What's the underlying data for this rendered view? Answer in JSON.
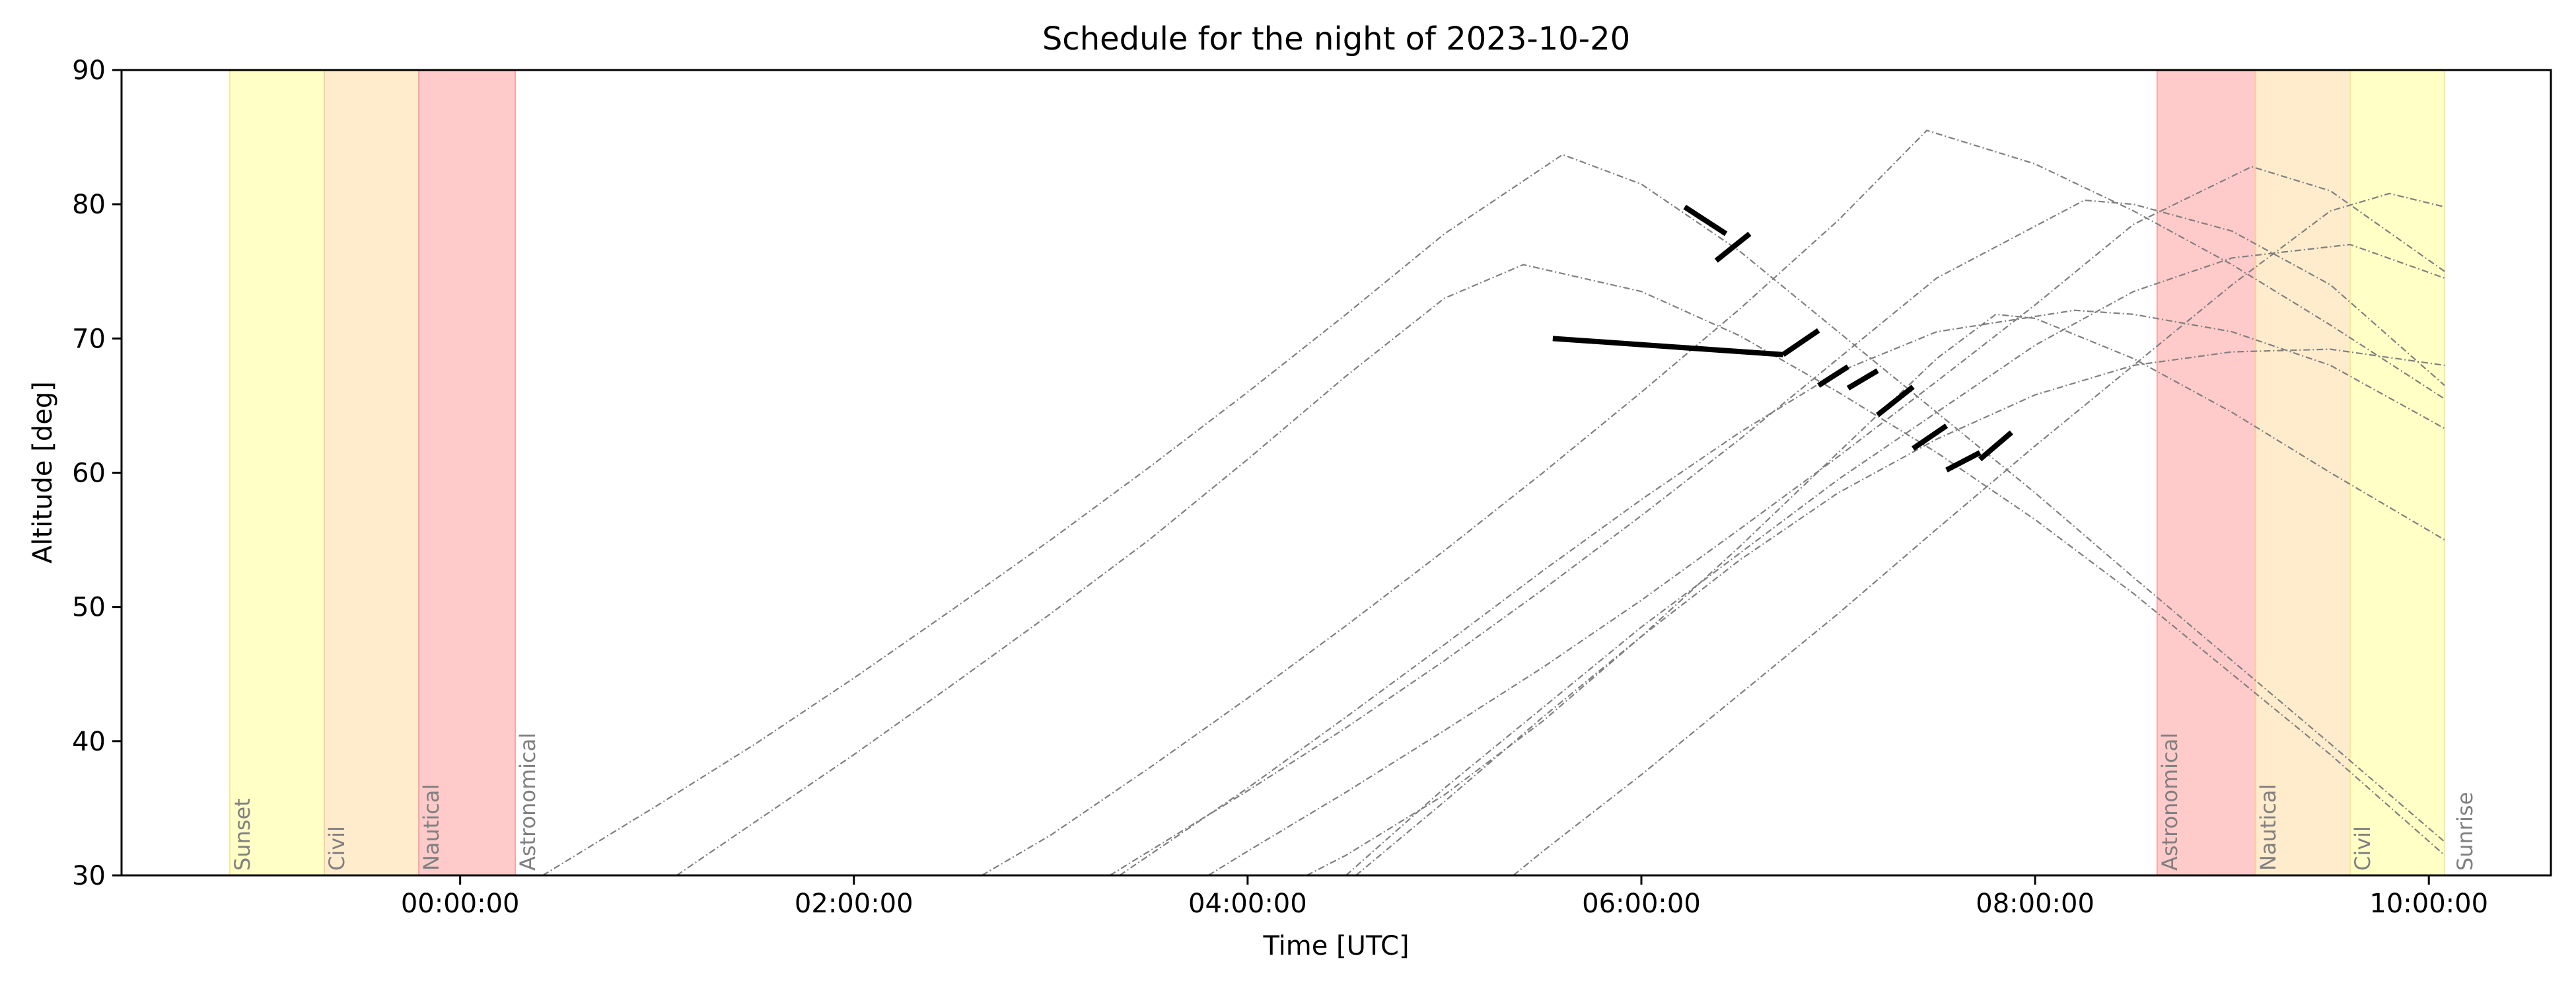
{
  "chart_data": {
    "type": "line",
    "title": "Schedule for the night of 2023-10-20",
    "xlabel": "Time [UTC]",
    "ylabel": "Altitude [deg]",
    "x_unit": "hours (UTC, relative to 2023-10-21 00:00:00)",
    "xlim": [
      -1.72,
      10.62
    ],
    "ylim": [
      30,
      90
    ],
    "grid": false,
    "x_ticks": [
      {
        "value": 0,
        "label": "00:00:00"
      },
      {
        "value": 2,
        "label": "02:00:00"
      },
      {
        "value": 4,
        "label": "04:00:00"
      },
      {
        "value": 6,
        "label": "06:00:00"
      },
      {
        "value": 8,
        "label": "08:00:00"
      },
      {
        "value": 10,
        "label": "10:00:00"
      }
    ],
    "y_ticks": [
      30,
      40,
      50,
      60,
      70,
      80,
      90
    ],
    "twilight_bands": [
      {
        "label": "Sunset",
        "start": -1.17,
        "end": -0.69,
        "color": "#ffffc6"
      },
      {
        "label": "Civil",
        "start": -0.69,
        "end": -0.21,
        "color": "#ffeccc"
      },
      {
        "label": "Nautical",
        "start": -0.21,
        "end": 0.28,
        "color": "#ffcaca"
      },
      {
        "label": "Astronomical",
        "start": 0.28,
        "end": 0.28,
        "color": "#ffcaca"
      },
      {
        "label": "Astronomical",
        "start": 8.62,
        "end": 9.12,
        "color": "#ffcaca"
      },
      {
        "label": "Nautical",
        "start": 9.12,
        "end": 9.6,
        "color": "#ffeccc"
      },
      {
        "label": "Civil",
        "start": 9.6,
        "end": 10.08,
        "color": "#ffffc6"
      },
      {
        "label": "Sunrise",
        "start": 10.08,
        "end": 10.08,
        "color": "#ffffc6"
      }
    ],
    "altitude_series": [
      {
        "transit_time": 5.6,
        "max_altitude": 83.7,
        "x": [
          0.42,
          1.0,
          1.5,
          2.0,
          2.5,
          3.0,
          3.5,
          4.0,
          4.5,
          5.0,
          5.6,
          6.0,
          6.5,
          7.0,
          7.5,
          8.0,
          8.5,
          9.0,
          9.5,
          10.08
        ],
        "y": [
          30.0,
          35.2,
          39.8,
          44.7,
          49.8,
          55.0,
          60.4,
          66.0,
          71.8,
          77.8,
          83.7,
          81.5,
          76.5,
          70.5,
          64.5,
          58.5,
          52.2,
          46.0,
          39.8,
          32.5
        ]
      },
      {
        "transit_time": 5.4,
        "max_altitude": 75.5,
        "x": [
          1.1,
          1.5,
          2.0,
          2.5,
          3.0,
          3.5,
          4.0,
          4.5,
          5.0,
          5.4,
          6.0,
          6.5,
          7.0,
          7.5,
          8.0,
          8.5,
          9.0,
          9.5,
          10.08
        ],
        "y": [
          30.0,
          34.0,
          39.0,
          44.2,
          49.5,
          55.0,
          61.0,
          67.2,
          73.0,
          75.5,
          73.5,
          70.2,
          66.0,
          61.5,
          56.5,
          51.0,
          45.0,
          39.0,
          31.5
        ]
      },
      {
        "transit_time": 7.45,
        "max_altitude": 85.5,
        "x": [
          2.65,
          3.0,
          3.5,
          4.0,
          4.5,
          5.0,
          5.5,
          6.0,
          6.5,
          7.0,
          7.45,
          8.0,
          8.5,
          9.0,
          9.5,
          10.08
        ],
        "y": [
          30.0,
          33.0,
          38.0,
          43.2,
          48.6,
          54.2,
          60.0,
          66.0,
          72.2,
          78.8,
          85.5,
          83.0,
          79.5,
          75.5,
          71.0,
          65.5
        ]
      },
      {
        "transit_time": 8.25,
        "max_altitude": 80.3,
        "x": [
          3.3,
          3.5,
          4.0,
          4.5,
          5.0,
          5.5,
          6.0,
          6.5,
          7.0,
          7.5,
          8.25,
          8.5,
          9.0,
          9.5,
          10.08
        ],
        "y": [
          30.0,
          31.8,
          36.3,
          41.0,
          46.0,
          51.3,
          56.8,
          62.5,
          68.5,
          74.5,
          80.3,
          80.0,
          78.0,
          74.0,
          66.5
        ]
      },
      {
        "transit_time": 9.1,
        "max_altitude": 82.8,
        "x": [
          3.8,
          4.0,
          4.5,
          5.0,
          5.5,
          6.0,
          6.5,
          7.0,
          7.5,
          8.0,
          8.5,
          9.1,
          9.5,
          10.08
        ],
        "y": [
          30.0,
          31.8,
          36.2,
          40.8,
          45.5,
          50.5,
          55.8,
          61.2,
          66.8,
          72.5,
          78.5,
          82.8,
          81.0,
          75.0
        ]
      },
      {
        "transit_time": 8.2,
        "max_altitude": 72.1,
        "x": [
          3.35,
          3.5,
          4.0,
          4.5,
          5.0,
          5.5,
          6.0,
          6.5,
          7.0,
          7.5,
          8.2,
          8.5,
          9.0,
          9.5,
          10.08
        ],
        "y": [
          30.0,
          31.5,
          36.5,
          41.8,
          47.2,
          52.7,
          58.0,
          63.0,
          67.5,
          70.5,
          72.1,
          71.8,
          70.5,
          68.0,
          63.3
        ]
      },
      {
        "transit_time": 7.8,
        "max_altitude": 71.8,
        "x": [
          4.3,
          4.5,
          5.0,
          5.5,
          6.0,
          6.5,
          7.0,
          7.5,
          7.8,
          8.0,
          8.5,
          9.0,
          9.5,
          10.08
        ],
        "y": [
          30.0,
          31.5,
          36.0,
          41.5,
          47.8,
          54.5,
          61.5,
          68.5,
          71.8,
          71.5,
          68.5,
          64.5,
          60.0,
          55.0
        ]
      },
      {
        "transit_time": 9.5,
        "max_altitude": 69.2,
        "x": [
          4.55,
          5.0,
          5.5,
          6.0,
          6.5,
          7.0,
          7.5,
          8.0,
          8.5,
          9.0,
          9.5,
          10.08
        ],
        "y": [
          30.0,
          35.5,
          41.8,
          47.8,
          53.5,
          58.5,
          62.5,
          65.8,
          68.0,
          69.0,
          69.2,
          68.0
        ]
      },
      {
        "transit_time": 9.6,
        "max_altitude": 77.0,
        "x": [
          4.5,
          5.0,
          5.5,
          6.0,
          6.5,
          7.0,
          7.5,
          8.0,
          8.5,
          9.0,
          9.6,
          10.08
        ],
        "y": [
          30.0,
          36.5,
          42.5,
          48.5,
          54.0,
          59.5,
          64.5,
          69.5,
          73.5,
          76.0,
          77.0,
          74.5
        ]
      },
      {
        "transit_time": 9.8,
        "max_altitude": 80.8,
        "x": [
          5.35,
          5.5,
          6.0,
          6.5,
          7.0,
          7.5,
          8.0,
          8.5,
          9.0,
          9.5,
          9.8,
          10.08
        ],
        "y": [
          30.0,
          31.8,
          37.5,
          43.5,
          49.5,
          55.8,
          62.0,
          68.0,
          74.0,
          79.5,
          80.8,
          79.8
        ]
      }
    ],
    "scheduled_observations": [
      {
        "x": [
          6.22,
          6.43
        ],
        "y": [
          79.8,
          77.8
        ]
      },
      {
        "x": [
          6.38,
          6.55
        ],
        "y": [
          75.8,
          77.8
        ]
      },
      {
        "x": [
          5.55,
          6.72
        ],
        "y": [
          70.0,
          68.8
        ]
      },
      {
        "x": [
          6.72,
          6.9
        ],
        "y": [
          68.8,
          70.6
        ]
      },
      {
        "x": [
          6.9,
          7.05
        ],
        "y": [
          66.5,
          67.9
        ]
      },
      {
        "x": [
          7.05,
          7.2
        ],
        "y": [
          66.3,
          67.6
        ]
      },
      {
        "x": [
          7.2,
          7.38
        ],
        "y": [
          64.3,
          66.4
        ]
      },
      {
        "x": [
          7.38,
          7.55
        ],
        "y": [
          61.8,
          63.5
        ]
      },
      {
        "x": [
          7.55,
          7.72
        ],
        "y": [
          60.2,
          61.5
        ]
      },
      {
        "x": [
          7.72,
          7.88
        ],
        "y": [
          61.0,
          63.0
        ]
      }
    ]
  }
}
